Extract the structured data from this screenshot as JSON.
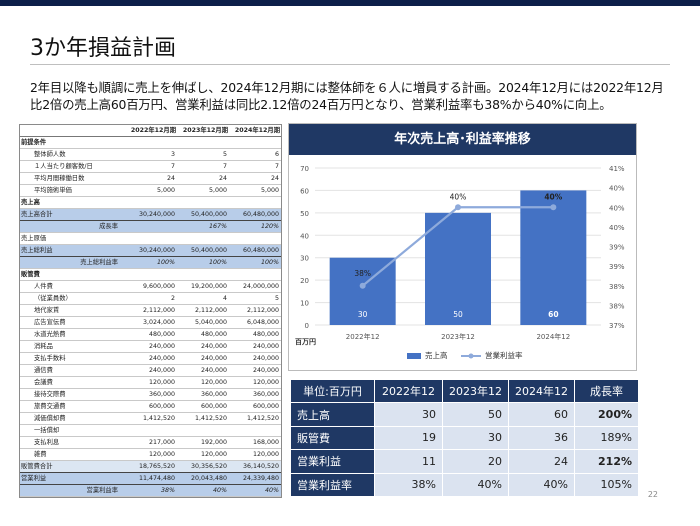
{
  "page": {
    "title": "3か年損益計画",
    "description": "2年目以降も順調に売上を伸ばし、2024年12月期には整体師を６人に増員する計画。2024年12月には2022年12月比2倍の売上高60百万円、営業利益は同比2.12倍の24百万円となり、営業利益率も38%から40%に向上。",
    "page_number": "22"
  },
  "left_table": {
    "headers": [
      "",
      "2022年12月期",
      "2023年12月期",
      "2024年12月期"
    ],
    "rows": [
      {
        "label": "前提条件",
        "values": [
          "",
          "",
          ""
        ],
        "style": "sec"
      },
      {
        "label": "整体師人数",
        "values": [
          "3",
          "5",
          "6"
        ],
        "style": "ind"
      },
      {
        "label": "１人当たり顧客数/日",
        "values": [
          "7",
          "7",
          "7"
        ],
        "style": "ind"
      },
      {
        "label": "平均月間稼働日数",
        "values": [
          "24",
          "24",
          "24"
        ],
        "style": "ind"
      },
      {
        "label": "平均施術単価",
        "values": [
          "5,000",
          "5,000",
          "5,000"
        ],
        "style": "ind"
      },
      {
        "label": "売上高",
        "values": [
          "",
          "",
          ""
        ],
        "style": "sec"
      },
      {
        "label": "売上高合計",
        "values": [
          "30,240,000",
          "50,400,000",
          "60,480,000"
        ],
        "style": "blue"
      },
      {
        "label": "成長率",
        "values": [
          "",
          "167%",
          "120%"
        ],
        "style": "blue-sub"
      },
      {
        "label": "売上原価",
        "values": [
          "",
          "",
          ""
        ],
        "style": "plain"
      },
      {
        "label": "売上総利益",
        "values": [
          "30,240,000",
          "50,400,000",
          "60,480,000"
        ],
        "style": "blue"
      },
      {
        "label": "売上総利益率",
        "values": [
          "100%",
          "100%",
          "100%"
        ],
        "style": "blue-sub"
      },
      {
        "label": "販管費",
        "values": [
          "",
          "",
          ""
        ],
        "style": "sec"
      },
      {
        "label": "人件費",
        "values": [
          "9,600,000",
          "19,200,000",
          "24,000,000"
        ],
        "style": "ind"
      },
      {
        "label": "（従業員数）",
        "values": [
          "2",
          "4",
          "5"
        ],
        "style": "ind"
      },
      {
        "label": "地代家賃",
        "values": [
          "2,112,000",
          "2,112,000",
          "2,112,000"
        ],
        "style": "ind"
      },
      {
        "label": "広告宣伝費",
        "values": [
          "3,024,000",
          "5,040,000",
          "6,048,000"
        ],
        "style": "ind"
      },
      {
        "label": "水道光熱費",
        "values": [
          "480,000",
          "480,000",
          "480,000"
        ],
        "style": "ind"
      },
      {
        "label": "消耗品",
        "values": [
          "240,000",
          "240,000",
          "240,000"
        ],
        "style": "ind"
      },
      {
        "label": "支払手数料",
        "values": [
          "240,000",
          "240,000",
          "240,000"
        ],
        "style": "ind"
      },
      {
        "label": "通信費",
        "values": [
          "240,000",
          "240,000",
          "240,000"
        ],
        "style": "ind"
      },
      {
        "label": "会議費",
        "values": [
          "120,000",
          "120,000",
          "120,000"
        ],
        "style": "ind"
      },
      {
        "label": "接待交際費",
        "values": [
          "360,000",
          "360,000",
          "360,000"
        ],
        "style": "ind"
      },
      {
        "label": "旅費交通費",
        "values": [
          "600,000",
          "600,000",
          "600,000"
        ],
        "style": "ind"
      },
      {
        "label": "減価償却費",
        "values": [
          "1,412,520",
          "1,412,520",
          "1,412,520"
        ],
        "style": "ind"
      },
      {
        "label": "一括償却",
        "values": [
          "",
          "",
          ""
        ],
        "style": "ind"
      },
      {
        "label": "支払利息",
        "values": [
          "217,000",
          "192,000",
          "168,000"
        ],
        "style": "ind"
      },
      {
        "label": "雑費",
        "values": [
          "120,000",
          "120,000",
          "120,000"
        ],
        "style": "ind"
      },
      {
        "label": "販管費合計",
        "values": [
          "18,765,520",
          "30,356,520",
          "36,140,520"
        ],
        "style": "lb"
      },
      {
        "label": "営業利益",
        "values": [
          "11,474,480",
          "20,043,480",
          "24,339,480"
        ],
        "style": "blue"
      },
      {
        "label": "営業利益率",
        "values": [
          "38%",
          "40%",
          "40%"
        ],
        "style": "blue-sub"
      }
    ]
  },
  "chart_data": {
    "type": "bar",
    "title": "年次売上高･利益率推移",
    "categories": [
      "2022年12",
      "2023年12",
      "2024年12"
    ],
    "series": [
      {
        "name": "売上高",
        "kind": "bar",
        "axis": "left",
        "values": [
          30,
          50,
          60
        ],
        "color": "#4472c4"
      },
      {
        "name": "営業利益率",
        "kind": "line",
        "axis": "right",
        "values": [
          38,
          40,
          40
        ],
        "labels": [
          "38%",
          "40%",
          "40%"
        ],
        "color": "#8eaadb"
      }
    ],
    "ylabel": "百万円",
    "ylim": [
      0,
      70
    ],
    "yticks": [
      "0",
      "10",
      "20",
      "30",
      "40",
      "50",
      "60",
      "70"
    ],
    "y2lim": [
      37,
      41
    ],
    "y2ticks": [
      "37%",
      "38%",
      "38%",
      "39%",
      "39%",
      "40%",
      "40%",
      "40%",
      "41%"
    ],
    "bar_labels": [
      "30",
      "50",
      "60"
    ],
    "grid": true,
    "legend": "bottom"
  },
  "bottom_table": {
    "headers": [
      "単位:百万円",
      "2022年12",
      "2023年12",
      "2024年12",
      "成長率"
    ],
    "rows": [
      {
        "label": "売上高",
        "values": [
          "30",
          "50",
          "60",
          "200%"
        ],
        "bold_last": true
      },
      {
        "label": "販管費",
        "values": [
          "19",
          "30",
          "36",
          "189%"
        ],
        "bold_last": false
      },
      {
        "label": "営業利益",
        "values": [
          "11",
          "20",
          "24",
          "212%"
        ],
        "bold_last": true
      },
      {
        "label": "営業利益率",
        "values": [
          "38%",
          "40%",
          "40%",
          "105%"
        ],
        "bold_last": false
      }
    ]
  }
}
